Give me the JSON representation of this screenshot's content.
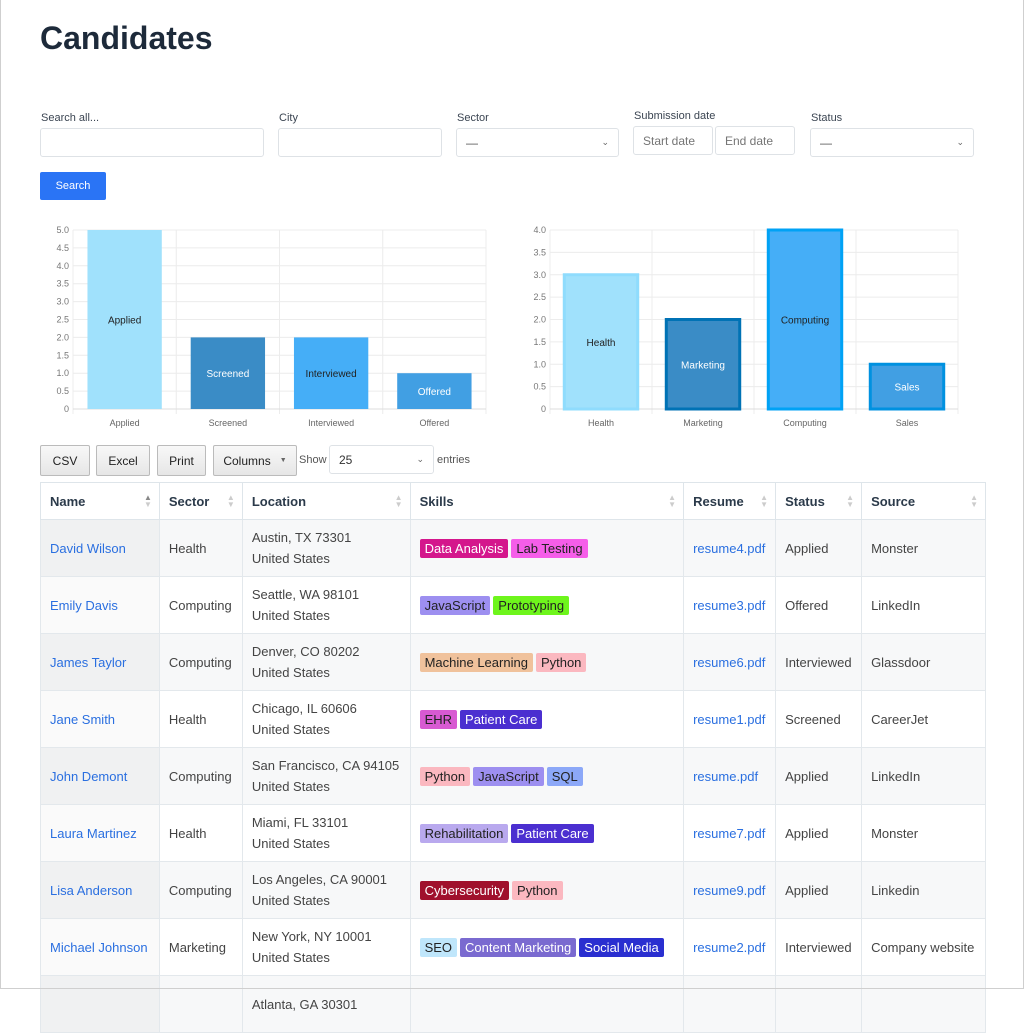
{
  "title": "Candidates",
  "filters": {
    "search_label": "Search all...",
    "search_value": "",
    "city_label": "City",
    "city_value": "",
    "sector_label": "Sector",
    "sector_value": "—",
    "date_label": "Submission date",
    "start_placeholder": "Start date",
    "end_placeholder": "End date",
    "status_label": "Status",
    "status_value": "—",
    "search_button": "Search"
  },
  "chart_data": [
    {
      "type": "bar",
      "categories": [
        "Applied",
        "Screened",
        "Interviewed",
        "Offered"
      ],
      "values": [
        5,
        2,
        2,
        1
      ],
      "ylim": [
        0,
        5
      ],
      "yticks": [
        "0",
        "0.5",
        "1.0",
        "1.5",
        "2.0",
        "2.5",
        "3.0",
        "3.5",
        "4.0",
        "4.5",
        "5.0"
      ],
      "grid": true,
      "colors": [
        "#a0e1fc",
        "#3a8cc6",
        "#45aef7",
        "#419fe3"
      ],
      "label_colors": [
        "#222",
        "#fff",
        "#222",
        "#fff"
      ]
    },
    {
      "type": "bar",
      "categories": [
        "Health",
        "Marketing",
        "Computing",
        "Sales"
      ],
      "values": [
        3,
        2,
        4,
        1
      ],
      "ylim": [
        0,
        4
      ],
      "yticks": [
        "0",
        "0.5",
        "1.0",
        "1.5",
        "2.0",
        "2.5",
        "3.0",
        "3.5",
        "4.0"
      ],
      "grid": true,
      "colors": [
        "#a0e1fc",
        "#3a8cc6",
        "#45aef7",
        "#419fe3"
      ],
      "borders": [
        "#8fdcfd",
        "#0072b5",
        "#00a2f5",
        "#0091e0"
      ],
      "label_colors": [
        "#222",
        "#fff",
        "#222",
        "#fff"
      ]
    }
  ],
  "toolbar": {
    "csv": "CSV",
    "excel": "Excel",
    "print": "Print",
    "columns": "Columns",
    "show": "Show",
    "entries_value": "25",
    "entries": "entries"
  },
  "table": {
    "headers": [
      "Name",
      "Sector",
      "Location",
      "Skills",
      "Resume",
      "Status",
      "Source"
    ],
    "rows": [
      {
        "name": "David Wilson",
        "sector": "Health",
        "loc1": "Austin, TX 73301",
        "loc2": "United States",
        "skills": [
          {
            "t": "Data Analysis",
            "bg": "#d4168c",
            "fg": "#fff"
          },
          {
            "t": "Lab Testing",
            "bg": "#f55ee9",
            "fg": "#222"
          }
        ],
        "resume": "resume4.pdf",
        "status": "Applied",
        "source": "Monster"
      },
      {
        "name": "Emily Davis",
        "sector": "Computing",
        "loc1": "Seattle, WA 98101",
        "loc2": "United States",
        "skills": [
          {
            "t": "JavaScript",
            "bg": "#9d8ff0",
            "fg": "#222"
          },
          {
            "t": "Prototyping",
            "bg": "#6ef51c",
            "fg": "#222"
          }
        ],
        "resume": "resume3.pdf",
        "status": "Offered",
        "source": "LinkedIn"
      },
      {
        "name": "James Taylor",
        "sector": "Computing",
        "loc1": "Denver, CO 80202",
        "loc2": "United States",
        "skills": [
          {
            "t": "Machine Learning",
            "bg": "#f0c29c",
            "fg": "#222"
          },
          {
            "t": "Python",
            "bg": "#fbb8c0",
            "fg": "#222"
          }
        ],
        "resume": "resume6.pdf",
        "status": "Interviewed",
        "source": "Glassdoor"
      },
      {
        "name": "Jane Smith",
        "sector": "Health",
        "loc1": "Chicago, IL 60606",
        "loc2": "United States",
        "skills": [
          {
            "t": "EHR",
            "bg": "#d85ad2",
            "fg": "#222"
          },
          {
            "t": "Patient Care",
            "bg": "#4b2fd0",
            "fg": "#fff"
          }
        ],
        "resume": "resume1.pdf",
        "status": "Screened",
        "source": "CareerJet"
      },
      {
        "name": "John Demont",
        "sector": "Computing",
        "loc1": "San Francisco, CA 94105",
        "loc2": "United States",
        "skills": [
          {
            "t": "Python",
            "bg": "#fbb8c0",
            "fg": "#222"
          },
          {
            "t": "JavaScript",
            "bg": "#9d8ff0",
            "fg": "#222"
          },
          {
            "t": "SQL",
            "bg": "#8ca8f8",
            "fg": "#222"
          }
        ],
        "resume": "resume.pdf",
        "status": "Applied",
        "source": "LinkedIn"
      },
      {
        "name": "Laura Martinez",
        "sector": "Health",
        "loc1": "Miami, FL 33101",
        "loc2": "United States",
        "skills": [
          {
            "t": "Rehabilitation",
            "bg": "#b9a9ee",
            "fg": "#222"
          },
          {
            "t": "Patient Care",
            "bg": "#4b2fd0",
            "fg": "#fff"
          }
        ],
        "resume": "resume7.pdf",
        "status": "Applied",
        "source": "Monster"
      },
      {
        "name": "Lisa Anderson",
        "sector": "Computing",
        "loc1": "Los Angeles, CA 90001",
        "loc2": "United States",
        "skills": [
          {
            "t": "Cybersecurity",
            "bg": "#a0102c",
            "fg": "#fff"
          },
          {
            "t": "Python",
            "bg": "#fbb8c0",
            "fg": "#222"
          }
        ],
        "resume": "resume9.pdf",
        "status": "Applied",
        "source": "Linkedin"
      },
      {
        "name": "Michael Johnson",
        "sector": "Marketing",
        "loc1": "New York, NY 10001",
        "loc2": "United States",
        "skills": [
          {
            "t": "SEO",
            "bg": "#bfe6fb",
            "fg": "#222"
          },
          {
            "t": "Content Marketing",
            "bg": "#7a6ad0",
            "fg": "#fff"
          },
          {
            "t": "Social Media",
            "bg": "#2a2fd0",
            "fg": "#fff"
          }
        ],
        "resume": "resume2.pdf",
        "status": "Interviewed",
        "source": "Company website"
      },
      {
        "name": "",
        "sector": "",
        "loc1": "Atlanta, GA 30301",
        "loc2": "",
        "skills": [],
        "resume": "",
        "status": "",
        "source": ""
      }
    ]
  }
}
